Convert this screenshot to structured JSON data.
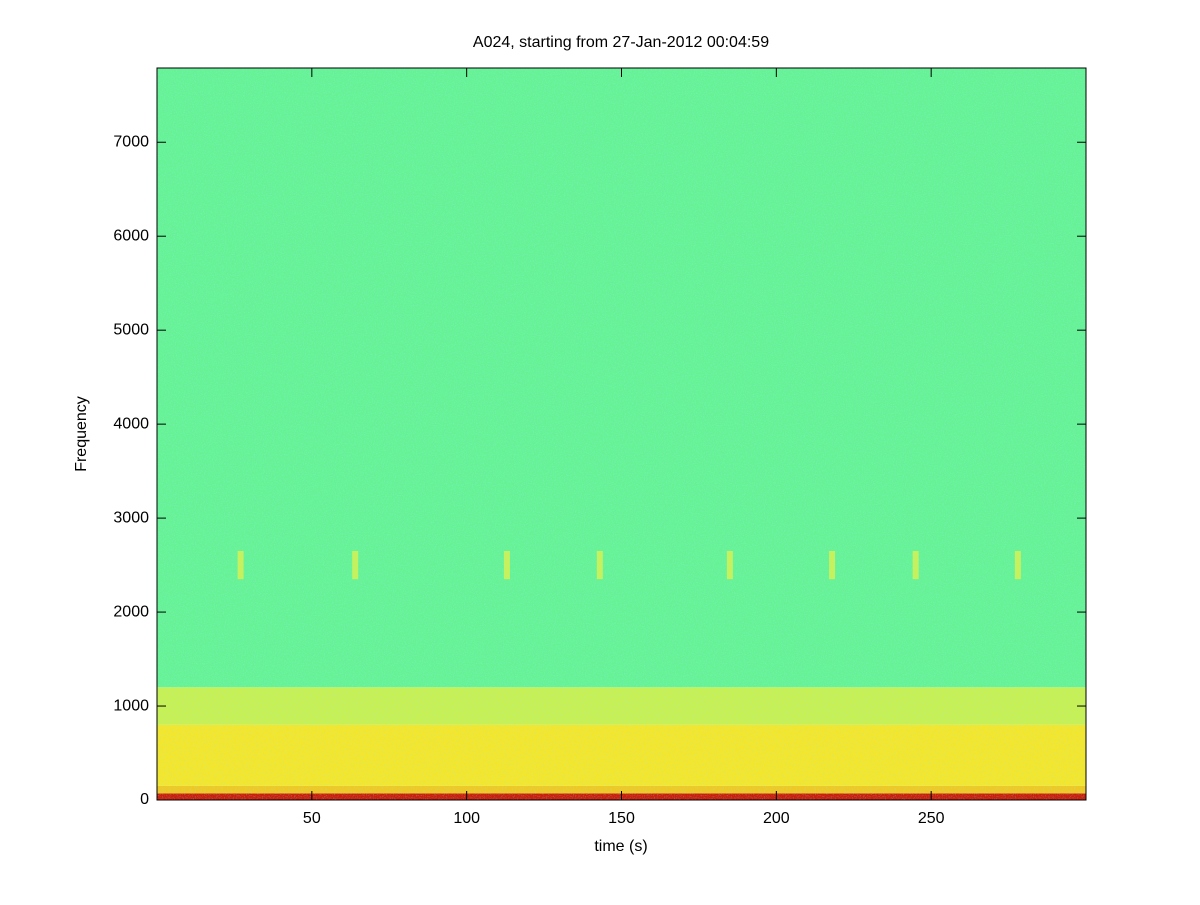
{
  "chart_data": {
    "type": "spectrogram",
    "title": "A024, starting from 27-Jan-2012 00:04:59",
    "xlabel": "time (s)",
    "ylabel": "Frequency",
    "xlim": [
      0,
      300
    ],
    "ylim": [
      0,
      7790
    ],
    "xticks": [
      50,
      100,
      150,
      200,
      250
    ],
    "yticks": [
      0,
      1000,
      2000,
      3000,
      4000,
      5000,
      6000,
      7000
    ],
    "grid": false,
    "bands": [
      {
        "from": 0,
        "to": 70,
        "color": "#c81e0a"
      },
      {
        "from": 70,
        "to": 150,
        "color": "#f0c820"
      },
      {
        "from": 150,
        "to": 800,
        "color": "#f5e628"
      },
      {
        "from": 800,
        "to": 1200,
        "color": "#c8f050"
      },
      {
        "from": 1200,
        "to": 7790,
        "color": "#66f294"
      }
    ],
    "streaks": {
      "x": [
        27,
        64,
        113,
        143,
        185,
        218,
        245,
        278
      ],
      "from": 2350,
      "to": 2650,
      "color": "#e1f046"
    }
  }
}
